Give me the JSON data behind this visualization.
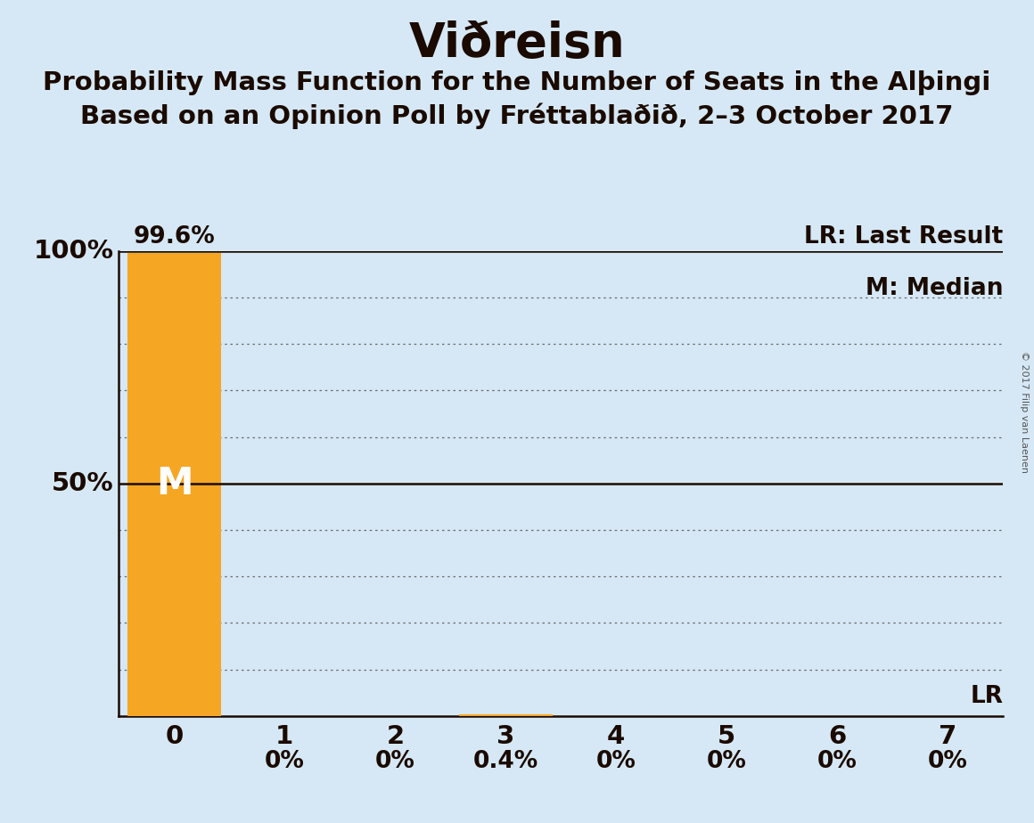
{
  "title": "Viðreisn",
  "subtitle1": "Probability Mass Function for the Number of Seats in the Alþingi",
  "subtitle2": "Based on an Opinion Poll by Fréttablaðið, 2–3 October 2017",
  "copyright": "© 2017 Filip van Laenen",
  "x_labels": [
    0,
    1,
    2,
    3,
    4,
    5,
    6,
    7
  ],
  "bar_values": [
    99.6,
    0.0,
    0.0,
    0.4,
    0.0,
    0.0,
    0.0,
    0.0
  ],
  "bar_color": "#F5A623",
  "background_color": "#D6E8F5",
  "ylim": [
    0,
    100
  ],
  "median_line_y": 50,
  "legend_lr": "LR: Last Result",
  "legend_m": "M: Median",
  "bar_label_above": "99.6%",
  "bar_labels": [
    "0%",
    "0%",
    "0.4%",
    "0%",
    "0%",
    "0%",
    "0%"
  ],
  "bar_label_fontsize": 19,
  "title_fontsize": 38,
  "subtitle_fontsize": 21,
  "tick_label_fontsize": 21,
  "legend_fontsize": 19,
  "m_fontsize": 30,
  "lr_fontsize": 19,
  "copyright_fontsize": 8,
  "dot_color": "#555555",
  "text_color": "#1a0a00",
  "white": "#ffffff"
}
